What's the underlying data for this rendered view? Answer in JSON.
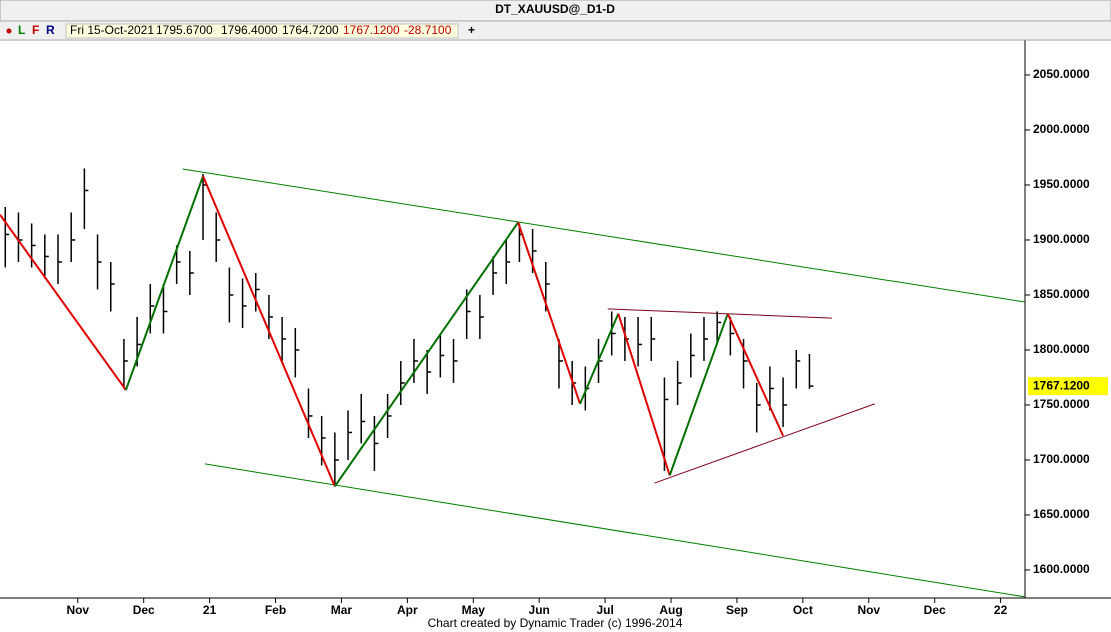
{
  "title_note": null,
  "toolbar": [
    "L",
    "F",
    "R",
    "+"
  ],
  "info": [
    "Fri 15-Oct-2021",
    "1795.6700",
    "1796.4000",
    "1764.7200",
    "1767.1200",
    "-28.7100"
  ],
  "footer": "Chart created by Dynamic Trader  (c) 1996-2014",
  "chart_data": {
    "type": "ohlc",
    "title": "DT_XAUUSD@_D1-D",
    "xlim": [
      -1.18,
      14.37
    ],
    "ylim": [
      1574.5,
      2081.8
    ],
    "xticks": [
      {
        "value": 0,
        "label": "Nov"
      },
      {
        "value": 1,
        "label": "Dec"
      },
      {
        "value": 2,
        "label": "21"
      },
      {
        "value": 3,
        "label": "Feb"
      },
      {
        "value": 4,
        "label": "Mar"
      },
      {
        "value": 5,
        "label": "Apr"
      },
      {
        "value": 6,
        "label": "May"
      },
      {
        "value": 7,
        "label": "Jun"
      },
      {
        "value": 8,
        "label": "Jul"
      },
      {
        "value": 9,
        "label": "Aug"
      },
      {
        "value": 10,
        "label": "Sep"
      },
      {
        "value": 11,
        "label": "Oct"
      },
      {
        "value": 12,
        "label": "Nov"
      },
      {
        "value": 13,
        "label": "Dec"
      },
      {
        "value": 14,
        "label": "22"
      }
    ],
    "yticks": [
      {
        "value": 1600,
        "label": "1600.0000"
      },
      {
        "value": 1650,
        "label": "1650.0000"
      },
      {
        "value": 1700,
        "label": "1700.0000"
      },
      {
        "value": 1750,
        "label": "1750.0000"
      },
      {
        "value": 1800,
        "label": "1800.0000"
      },
      {
        "value": 1850,
        "label": "1850.0000"
      },
      {
        "value": 1900,
        "label": "1900.0000"
      },
      {
        "value": 1950,
        "label": "1950.0000"
      },
      {
        "value": 2000,
        "label": "2000.0000"
      },
      {
        "value": 2050,
        "label": "2050.0000"
      }
    ],
    "bar_color": "#000000",
    "x": [
      -1.1,
      -0.9,
      -0.7,
      -0.5,
      -0.3,
      -0.1,
      0.1,
      0.3,
      0.5,
      0.7,
      0.9,
      1.1,
      1.3,
      1.5,
      1.7,
      1.9,
      2.1,
      2.3,
      2.5,
      2.7,
      2.9,
      3.1,
      3.3,
      3.5,
      3.7,
      3.9,
      4.1,
      4.3,
      4.5,
      4.7,
      4.9,
      5.1,
      5.3,
      5.5,
      5.7,
      5.9,
      6.1,
      6.3,
      6.5,
      6.7,
      6.9,
      7.1,
      7.3,
      7.5,
      7.7,
      7.9,
      8.1,
      8.3,
      8.5,
      8.7,
      8.9,
      9.1,
      9.3,
      9.5,
      9.7,
      9.9,
      10.1,
      10.3,
      10.5,
      10.7,
      10.9,
      11.1
    ],
    "high": [
      1930,
      1925,
      1915,
      1905,
      1905,
      1925,
      1965,
      1905,
      1880,
      1810,
      1830,
      1860,
      1860,
      1895,
      1890,
      1960,
      1925,
      1875,
      1865,
      1870,
      1850,
      1830,
      1820,
      1765,
      1740,
      1725,
      1745,
      1760,
      1740,
      1760,
      1790,
      1810,
      1800,
      1815,
      1810,
      1855,
      1850,
      1885,
      1900,
      1915,
      1910,
      1880,
      1810,
      1790,
      1785,
      1810,
      1835,
      1830,
      1830,
      1830,
      1775,
      1790,
      1815,
      1830,
      1835,
      1830,
      1810,
      1770,
      1785,
      1775,
      1800,
      1796.4
    ],
    "low": [
      1875,
      1880,
      1875,
      1865,
      1860,
      1880,
      1910,
      1855,
      1835,
      1765,
      1785,
      1815,
      1815,
      1860,
      1850,
      1900,
      1880,
      1825,
      1820,
      1835,
      1810,
      1790,
      1775,
      1720,
      1695,
      1677,
      1700,
      1715,
      1690,
      1720,
      1750,
      1770,
      1760,
      1775,
      1770,
      1810,
      1810,
      1850,
      1860,
      1880,
      1870,
      1835,
      1765,
      1750,
      1745,
      1770,
      1795,
      1790,
      1785,
      1790,
      1690,
      1750,
      1775,
      1790,
      1805,
      1795,
      1765,
      1725,
      1745,
      1730,
      1765,
      1764.72
    ],
    "close": [
      1905,
      1900,
      1895,
      1885,
      1880,
      1900,
      1945,
      1880,
      1860,
      1790,
      1805,
      1840,
      1835,
      1880,
      1870,
      1950,
      1900,
      1850,
      1840,
      1855,
      1830,
      1810,
      1800,
      1740,
      1720,
      1700,
      1725,
      1735,
      1715,
      1740,
      1770,
      1790,
      1780,
      1795,
      1790,
      1835,
      1830,
      1870,
      1880,
      1905,
      1890,
      1860,
      1790,
      1770,
      1765,
      1790,
      1815,
      1810,
      1805,
      1810,
      1755,
      1770,
      1795,
      1810,
      1825,
      1815,
      1790,
      1750,
      1765,
      1750,
      1790,
      1767.12
    ],
    "last_price": {
      "value": 1767.12,
      "label": "1767.1200"
    },
    "last_price_color": "#ffff00",
    "zigzag": {
      "x": [
        -1.18,
        0.73,
        1.9,
        3.9,
        6.68,
        7.62,
        8.2,
        8.98,
        9.86,
        10.7
      ],
      "y": [
        1923,
        1763.6,
        1958,
        1676,
        1916,
        1751,
        1833,
        1686,
        1833,
        1722
      ],
      "colors": [
        "#e00000",
        "#007000",
        "#e00000",
        "#007000",
        "#e00000",
        "#007000",
        "#e00000",
        "#007000",
        "#e00000"
      ]
    },
    "trendlines": [
      {
        "x": [
          1.59,
          14.37
        ],
        "y": [
          1964.5,
          1843.6
        ],
        "color": "#008000"
      },
      {
        "x": [
          1.93,
          14.37
        ],
        "y": [
          1696.4,
          1575.5
        ],
        "color": "#008000"
      },
      {
        "x": [
          8.04,
          11.44
        ],
        "y": [
          1837.3,
          1829
        ],
        "color": "#800020"
      },
      {
        "x": [
          8.75,
          12.09
        ],
        "y": [
          1679,
          1751
        ],
        "color": "#800020"
      }
    ]
  }
}
